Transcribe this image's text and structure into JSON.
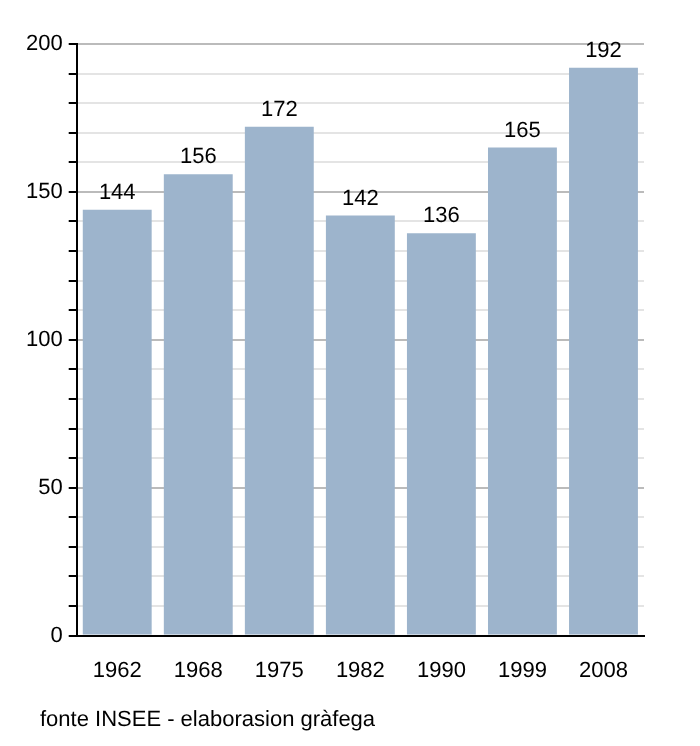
{
  "chart_data": {
    "type": "bar",
    "categories": [
      "1962",
      "1968",
      "1975",
      "1982",
      "1990",
      "1999",
      "2008"
    ],
    "values": [
      144,
      156,
      172,
      142,
      136,
      165,
      192
    ],
    "color": "#9db4cc",
    "data_labels": true,
    "ylim": [
      0,
      200
    ],
    "yticks": [
      0,
      {
        "value": 10,
        "label": null
      },
      {
        "value": 20,
        "label": null
      },
      {
        "value": 30,
        "label": null
      },
      {
        "value": 40,
        "label": null
      },
      50,
      {
        "value": 60,
        "label": null
      },
      {
        "value": 70,
        "label": null
      },
      {
        "value": 80,
        "label": null
      },
      {
        "value": 90,
        "label": null
      },
      100,
      {
        "value": 110,
        "label": null
      },
      {
        "value": 120,
        "label": null
      },
      {
        "value": 130,
        "label": null
      },
      {
        "value": 140,
        "label": null
      },
      150,
      {
        "value": 160,
        "label": null
      },
      {
        "value": 170,
        "label": null
      },
      {
        "value": 180,
        "label": null
      },
      {
        "value": 190,
        "label": null
      },
      200
    ],
    "grid": "y",
    "legend": false,
    "annotations": [
      "fonte INSEE - elaborasion gràfega"
    ]
  }
}
